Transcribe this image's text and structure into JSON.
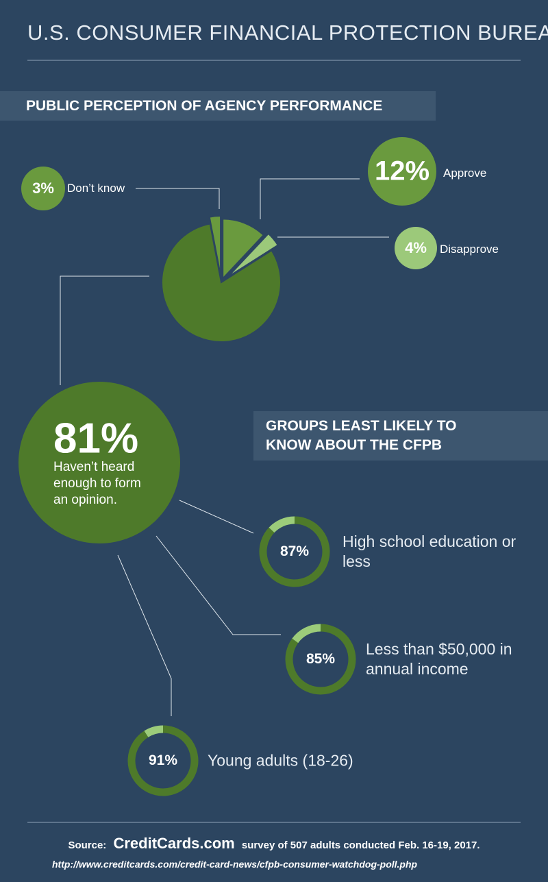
{
  "header": {
    "title": "U.S. CONSUMER FINANCIAL PROTECTION BUREAU"
  },
  "chart_data": [
    {
      "type": "pie",
      "title": "PUBLIC PERCEPTION OF AGENCY PERFORMANCE",
      "categories": [
        "Approve",
        "Disapprove",
        "Haven’t heard enough to form an opinion.",
        "Don’t know"
      ],
      "values": [
        12,
        4,
        81,
        3
      ],
      "value_labels": [
        "12%",
        "4%",
        "81%",
        "3%"
      ],
      "colors": [
        "#6a9a3e",
        "#9cc97a",
        "#4e7a2a",
        "#6a9a3e"
      ]
    },
    {
      "type": "donut",
      "title": "GROUPS LEAST LIKELY TO KNOW ABOUT THE CFPB",
      "categories": [
        "High school education or less",
        "Less than $50,000 in annual income",
        "Young adults (18-26)"
      ],
      "values": [
        87,
        85,
        91
      ],
      "value_labels": [
        "87%",
        "85%",
        "91%"
      ],
      "color": "#4e7a2a",
      "remainder_color": "#9ccc7a"
    }
  ],
  "footer": {
    "source_prefix": "Source:",
    "brand": "CreditCards.com",
    "source_text": "survey of 507 adults conducted Feb. 16-19, 2017.",
    "url": "http://www.creditcards.com/credit-card-news/cfpb-consumer-watchdog-poll.php"
  }
}
